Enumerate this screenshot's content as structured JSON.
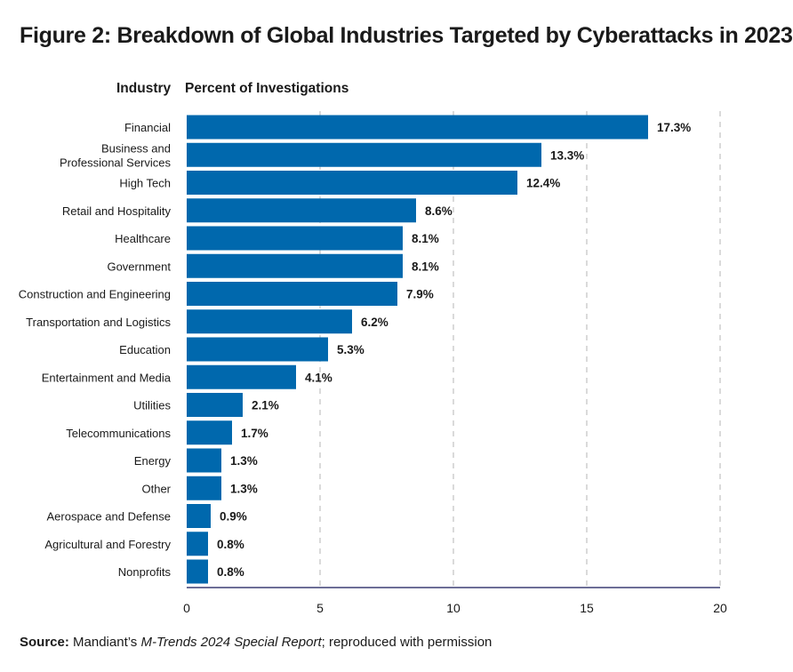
{
  "title": "Figure 2: Breakdown of Global Industries Targeted by Cyberattacks in 2023",
  "headers": {
    "category": "Industry",
    "value": "Percent of Investigations"
  },
  "source": {
    "label": "Source:",
    "pre": "Mandiant’s ",
    "italic": "M-Trends 2024 Special Report",
    "post": "; reproduced with permission"
  },
  "colors": {
    "bar": "#0068ad",
    "axis": "#3b3f73",
    "grid": "#b5b5b5",
    "text": "#1a1a1a"
  },
  "chart_data": {
    "type": "bar",
    "orientation": "horizontal",
    "categories": [
      "Financial",
      "Business and\nProfessional Services",
      "High Tech",
      "Retail and Hospitality",
      "Healthcare",
      "Government",
      "Construction and Engineering",
      "Transportation and Logistics",
      "Education",
      "Entertainment and Media",
      "Utilities",
      "Telecommunications",
      "Energy",
      "Other",
      "Aerospace and Defense",
      "Agricultural and Forestry",
      "Nonprofits"
    ],
    "values": [
      17.3,
      13.3,
      12.4,
      8.6,
      8.1,
      8.1,
      7.9,
      6.2,
      5.3,
      4.1,
      2.1,
      1.7,
      1.3,
      1.3,
      0.9,
      0.8,
      0.8
    ],
    "data_labels": [
      "17.3%",
      "13.3%",
      "12.4%",
      "8.6%",
      "8.1%",
      "8.1%",
      "7.9%",
      "6.2%",
      "5.3%",
      "4.1%",
      "2.1%",
      "1.7%",
      "1.3%",
      "1.3%",
      "0.9%",
      "0.8%",
      "0.8%"
    ],
    "xlim": [
      0,
      20
    ],
    "xticks": [
      0,
      5,
      10,
      15,
      20
    ],
    "grid": "vertical dashed",
    "legend": "none"
  }
}
